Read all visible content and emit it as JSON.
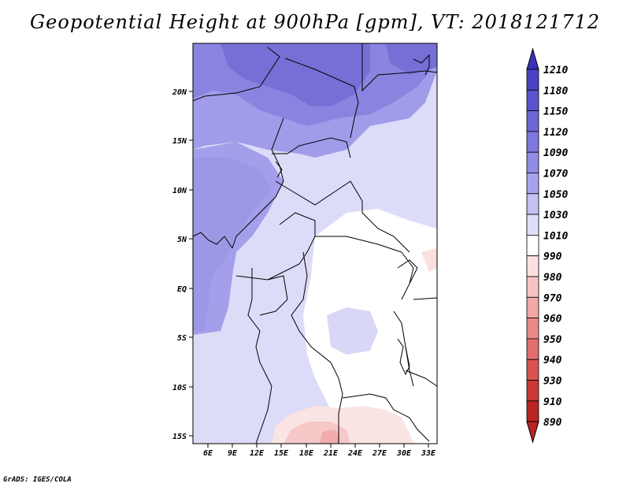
{
  "title": "Geopotential Height at 900hPa [gpm], VT: 2018121712",
  "credit": "GrADS: IGES/COLA",
  "map": {
    "variable": "Geopotential Height",
    "level": "900hPa",
    "units": "gpm",
    "valid_time": "2018121712",
    "lat_labels": [
      "20N",
      "15N",
      "10N",
      "5N",
      "EQ",
      "5S",
      "10S",
      "15S"
    ],
    "lon_labels": [
      "6E",
      "9E",
      "12E",
      "15E",
      "18E",
      "21E",
      "24E",
      "27E",
      "30E",
      "33E"
    ]
  },
  "colorbar": {
    "levels": [
      "1210",
      "1180",
      "1150",
      "1120",
      "1090",
      "1070",
      "1050",
      "1030",
      "1010",
      "990",
      "980",
      "970",
      "960",
      "950",
      "940",
      "930",
      "910",
      "890"
    ],
    "colors": [
      "#3a32b8",
      "#4a42c4",
      "#5a54cc",
      "#6c66d4",
      "#7e78dc",
      "#918ce4",
      "#a8a4ec",
      "#c4c2f2",
      "#dedef8",
      "#ffffff",
      "#fbe0e0",
      "#f6c4c4",
      "#f0a8a8",
      "#e88a8a",
      "#e06e6e",
      "#d85252",
      "#cc3838",
      "#b82424"
    ]
  }
}
